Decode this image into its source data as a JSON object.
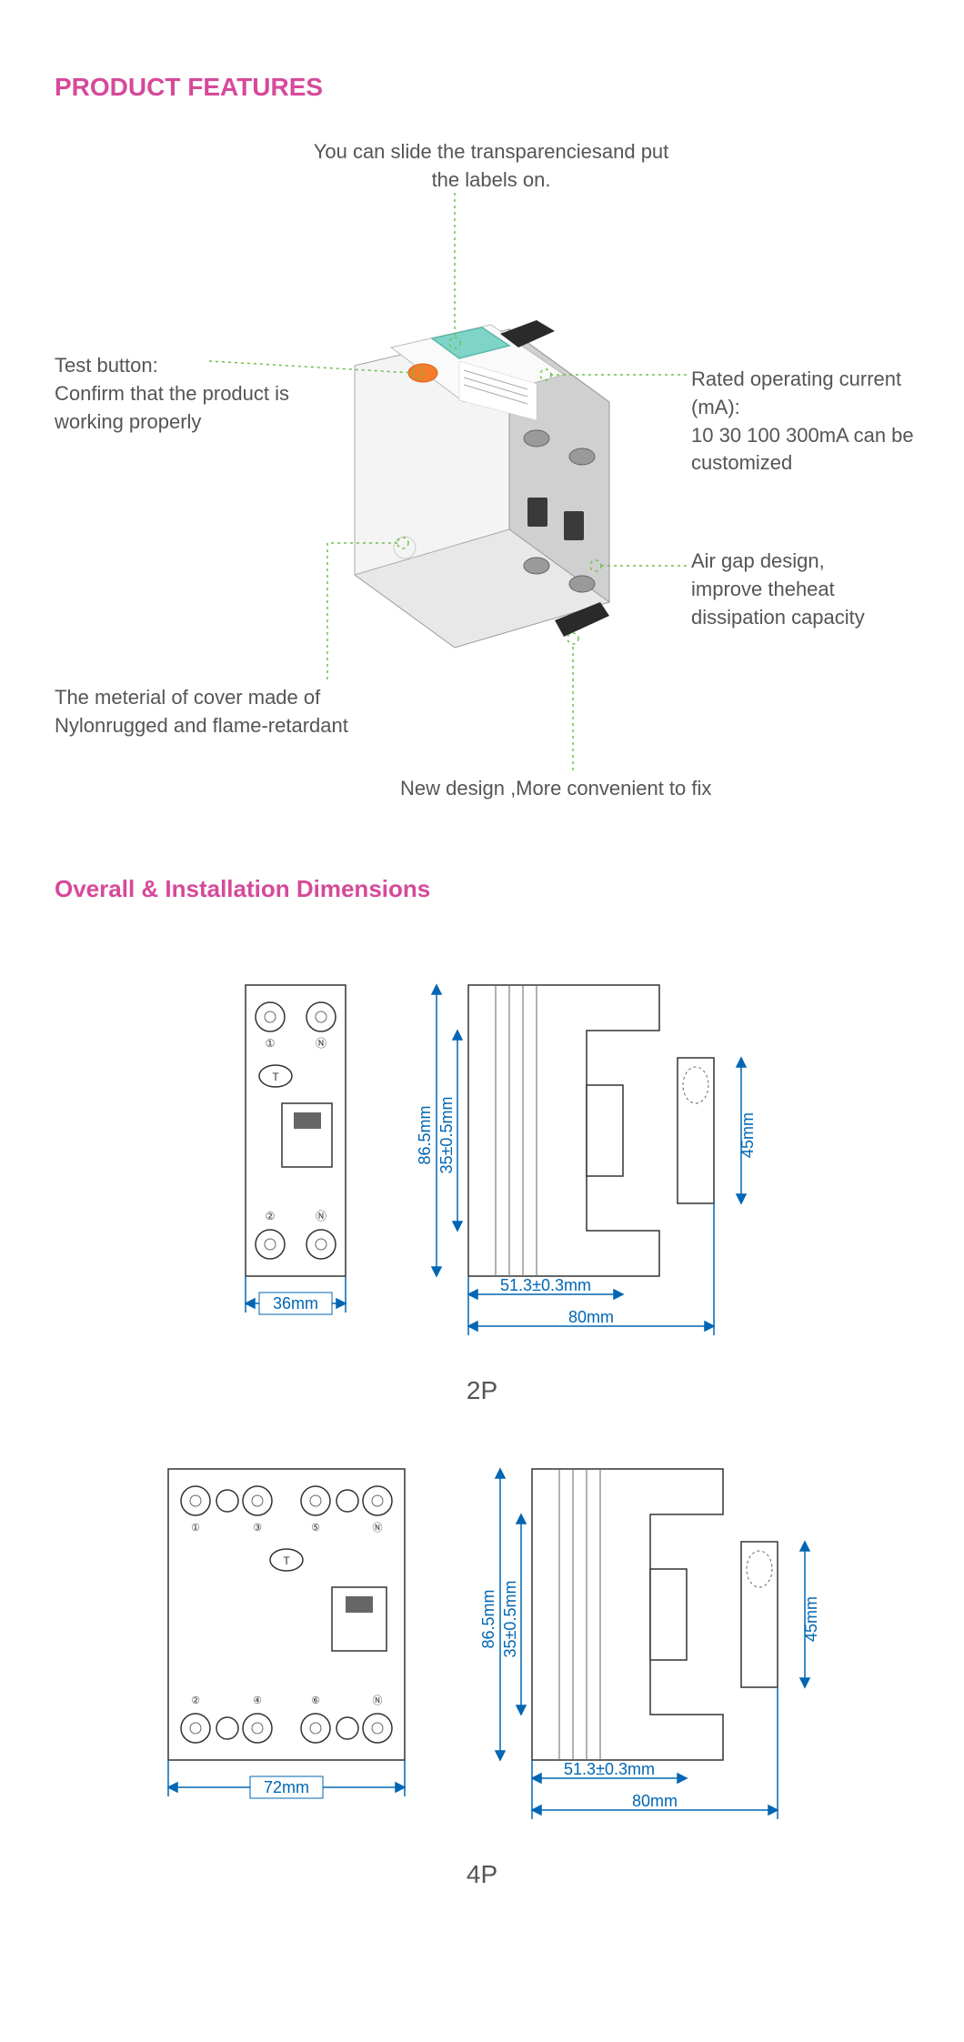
{
  "headings": {
    "features": "PRODUCT FEATURES",
    "dimensions": "Overall & Installation Dimensions"
  },
  "callouts": {
    "top": "You can slide the transparenciesand put the labels on.",
    "testButton": "Test button:\nConfirm that the product is working properly",
    "rated": "Rated operating current (mA):\n10 30 100 300mA can be customized",
    "airgap": "Air gap design, improve theheat dissipation capacity",
    "cover": "The meterial of cover made of Nylonrugged and flame-retardant",
    "bottom": "New design ,More convenient to fix"
  },
  "dimensions": {
    "p2": {
      "label": "2P",
      "front_width": "36mm",
      "height": "86.5mm",
      "face": "35±0.5mm",
      "depth_partial": "51.3±0.3mm",
      "depth": "80mm",
      "rail": "45mm"
    },
    "p4": {
      "label": "4P",
      "front_width": "72mm",
      "height": "86.5mm",
      "face": "35±0.5mm",
      "depth_partial": "51.3±0.3mm",
      "depth": "80mm",
      "rail": "45mm"
    }
  },
  "colors": {
    "accent": "#d6499a",
    "dim": "#0066b3",
    "dotted": "#6fbf4b",
    "text": "#555555",
    "orange": "#f47b2a",
    "teal": "#7fd4c8",
    "body_light": "#f2f2f2",
    "body_mid": "#d8d8d8",
    "body_dark": "#bfbfbf"
  }
}
